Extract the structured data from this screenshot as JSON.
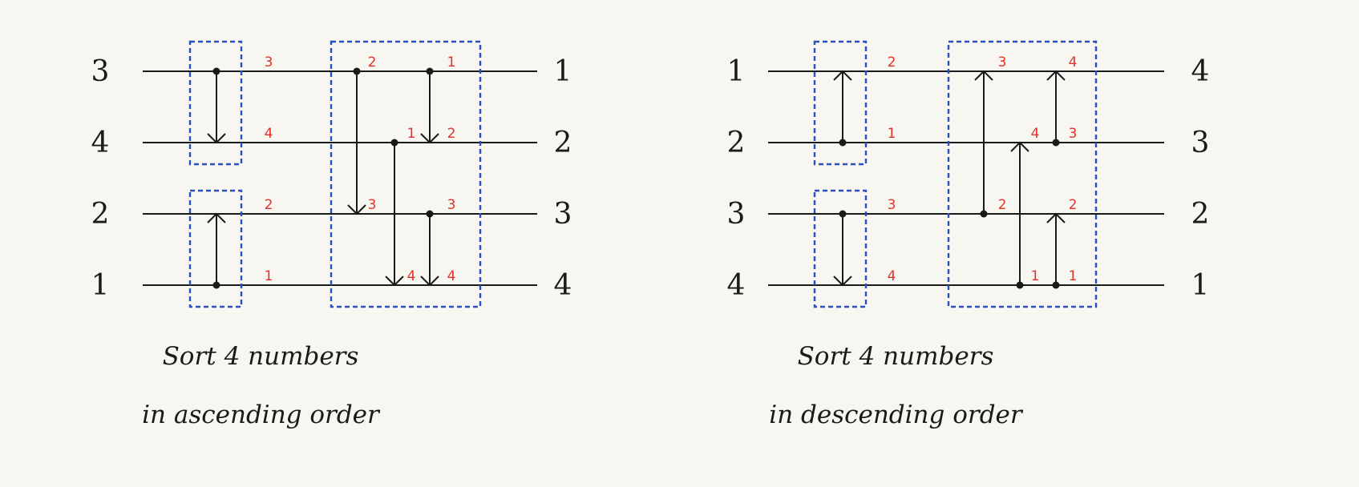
{
  "networks": [
    {
      "id": "ascending",
      "inputs": [
        "3",
        "4",
        "2",
        "1"
      ],
      "outputs": [
        "1",
        "2",
        "3",
        "4"
      ],
      "caption_line1": "Sort 4 numbers",
      "caption_line2": "in ascending order",
      "comparators": [
        {
          "from": 0,
          "to": 1,
          "stage": 0,
          "col": 0
        },
        {
          "from": 3,
          "to": 2,
          "stage": 0,
          "col": 0
        },
        {
          "from": 0,
          "to": 2,
          "stage": 1,
          "col": 0
        },
        {
          "from": 1,
          "to": 3,
          "stage": 1,
          "col": 1
        },
        {
          "from": 0,
          "to": 1,
          "stage": 1,
          "col": 2
        },
        {
          "from": 2,
          "to": 3,
          "stage": 1,
          "col": 2
        }
      ],
      "intermediate_labels": [
        {
          "text": "3",
          "stage": 0,
          "wire": 0
        },
        {
          "text": "4",
          "stage": 0,
          "wire": 1
        },
        {
          "text": "2",
          "stage": 0,
          "wire": 2
        },
        {
          "text": "1",
          "stage": 0,
          "wire": 3
        },
        {
          "text": "2",
          "stage": 1,
          "wire": 0,
          "col": 0
        },
        {
          "text": "1",
          "stage": 1,
          "wire": 0,
          "col": 2
        },
        {
          "text": "1",
          "stage": 1,
          "wire": 1,
          "col": 1
        },
        {
          "text": "2",
          "stage": 1,
          "wire": 1,
          "col": 2
        },
        {
          "text": "3",
          "stage": 1,
          "wire": 2,
          "col": 0
        },
        {
          "text": "3",
          "stage": 1,
          "wire": 2,
          "col": 2
        },
        {
          "text": "4",
          "stage": 1,
          "wire": 3,
          "col": 1
        },
        {
          "text": "4",
          "stage": 1,
          "wire": 3,
          "col": 2
        }
      ]
    },
    {
      "id": "descending",
      "inputs": [
        "1",
        "2",
        "3",
        "4"
      ],
      "outputs": [
        "4",
        "3",
        "2",
        "1"
      ],
      "caption_line1": "Sort 4 numbers",
      "caption_line2": "in descending order",
      "comparators": [
        {
          "from": 1,
          "to": 0,
          "stage": 0,
          "col": 0
        },
        {
          "from": 2,
          "to": 3,
          "stage": 0,
          "col": 0
        },
        {
          "from": 2,
          "to": 0,
          "stage": 1,
          "col": 0
        },
        {
          "from": 3,
          "to": 1,
          "stage": 1,
          "col": 1
        },
        {
          "from": 1,
          "to": 0,
          "stage": 1,
          "col": 2
        },
        {
          "from": 3,
          "to": 2,
          "stage": 1,
          "col": 2
        }
      ],
      "intermediate_labels": [
        {
          "text": "2",
          "stage": 0,
          "wire": 0
        },
        {
          "text": "1",
          "stage": 0,
          "wire": 1
        },
        {
          "text": "3",
          "stage": 0,
          "wire": 2
        },
        {
          "text": "4",
          "stage": 0,
          "wire": 3
        },
        {
          "text": "3",
          "stage": 1,
          "wire": 0,
          "col": 0
        },
        {
          "text": "4",
          "stage": 1,
          "wire": 0,
          "col": 2
        },
        {
          "text": "4",
          "stage": 1,
          "wire": 1,
          "col": 1
        },
        {
          "text": "3",
          "stage": 1,
          "wire": 1,
          "col": 2
        },
        {
          "text": "2",
          "stage": 1,
          "wire": 2,
          "col": 0
        },
        {
          "text": "2",
          "stage": 1,
          "wire": 2,
          "col": 2
        },
        {
          "text": "1",
          "stage": 1,
          "wire": 3,
          "col": 1
        },
        {
          "text": "1",
          "stage": 1,
          "wire": 3,
          "col": 2
        }
      ]
    }
  ]
}
